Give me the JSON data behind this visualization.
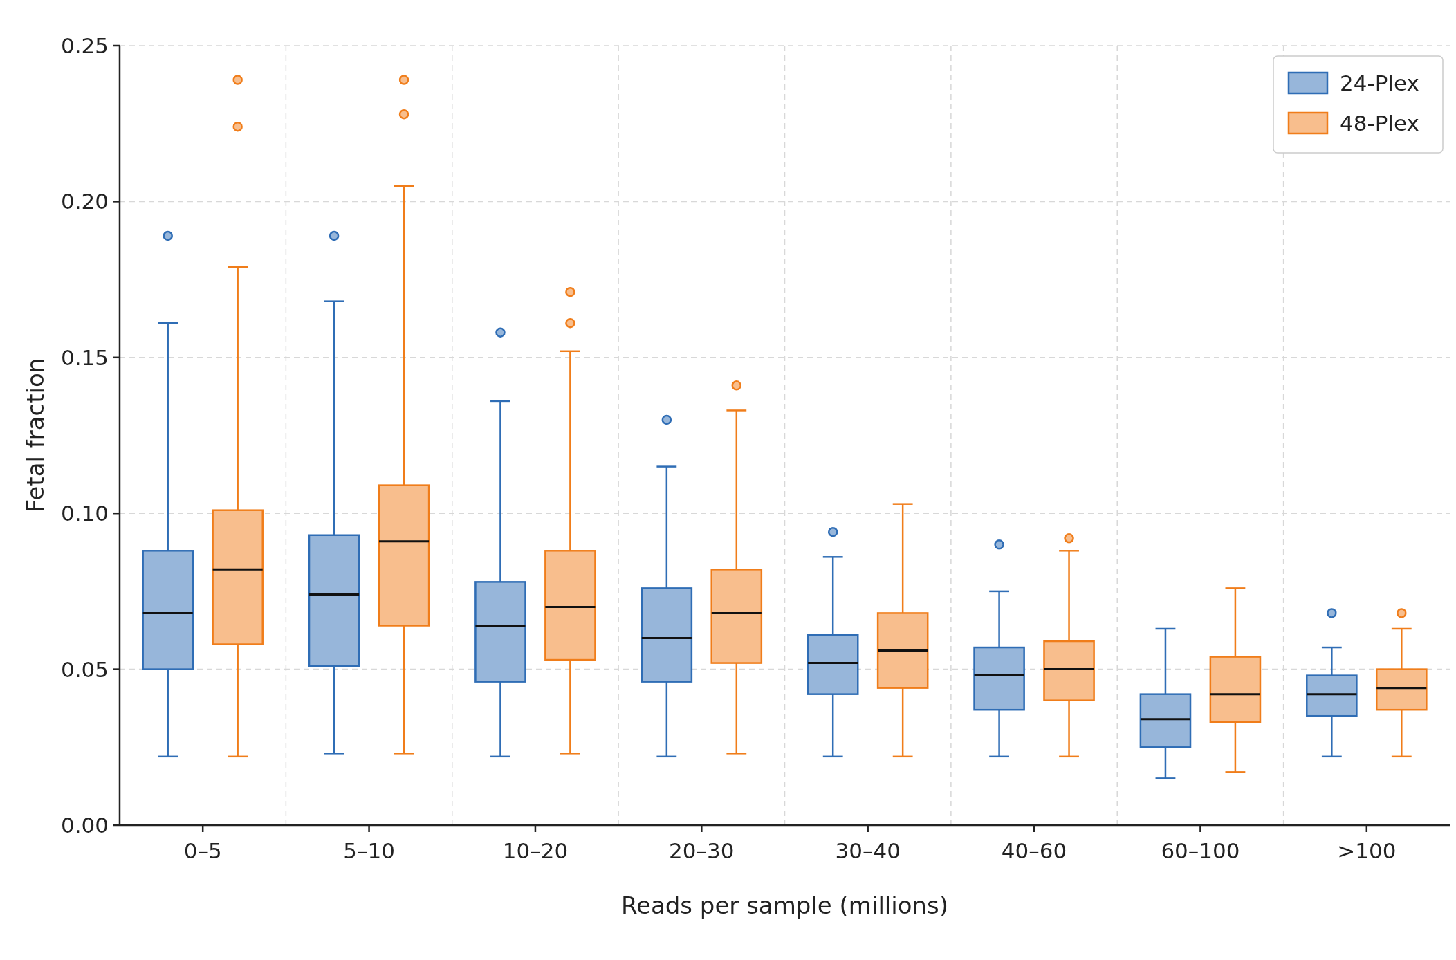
{
  "chart_data": {
    "type": "box",
    "xlabel": "Reads per sample (millions)",
    "ylabel": "Fetal fraction",
    "categories": [
      "0–5",
      "5–10",
      "10–20",
      "20–30",
      "30–40",
      "40–60",
      "60–100",
      ">100"
    ],
    "ylim": [
      0,
      0.25
    ],
    "yticks": [
      {
        "value": 0,
        "label": "0.00"
      },
      {
        "value": 0.05,
        "label": "0.05"
      },
      {
        "value": 0.1,
        "label": "0.10"
      },
      {
        "value": 0.15,
        "label": "0.15"
      },
      {
        "value": 0.2,
        "label": "0.20"
      },
      {
        "value": 0.25,
        "label": "0.25"
      }
    ],
    "grid": true,
    "legend": "top right",
    "series": [
      {
        "name": "24-Plex",
        "color": "#2f6db5",
        "boxes": [
          {
            "low": 0.022,
            "q1": 0.05,
            "median": 0.068,
            "q3": 0.088,
            "high": 0.161,
            "outliers": [
              0.189
            ]
          },
          {
            "low": 0.023,
            "q1": 0.051,
            "median": 0.074,
            "q3": 0.093,
            "high": 0.168,
            "outliers": [
              0.189
            ]
          },
          {
            "low": 0.022,
            "q1": 0.046,
            "median": 0.064,
            "q3": 0.078,
            "high": 0.136,
            "outliers": [
              0.158
            ]
          },
          {
            "low": 0.022,
            "q1": 0.046,
            "median": 0.06,
            "q3": 0.076,
            "high": 0.115,
            "outliers": [
              0.13
            ]
          },
          {
            "low": 0.022,
            "q1": 0.042,
            "median": 0.052,
            "q3": 0.061,
            "high": 0.086,
            "outliers": [
              0.094
            ]
          },
          {
            "low": 0.022,
            "q1": 0.037,
            "median": 0.048,
            "q3": 0.057,
            "high": 0.075,
            "outliers": [
              0.09
            ]
          },
          {
            "low": 0.015,
            "q1": 0.025,
            "median": 0.034,
            "q3": 0.042,
            "high": 0.063
          },
          {
            "low": 0.022,
            "q1": 0.035,
            "median": 0.042,
            "q3": 0.048,
            "high": 0.057,
            "outliers": [
              0.068
            ]
          }
        ]
      },
      {
        "name": "48-Plex",
        "color": "#f07d1a",
        "boxes": [
          {
            "low": 0.022,
            "q1": 0.058,
            "median": 0.082,
            "q3": 0.101,
            "high": 0.179,
            "outliers": [
              0.239,
              0.224
            ]
          },
          {
            "low": 0.023,
            "q1": 0.064,
            "median": 0.091,
            "q3": 0.109,
            "high": 0.205,
            "outliers": [
              0.239,
              0.228
            ]
          },
          {
            "low": 0.023,
            "q1": 0.053,
            "median": 0.07,
            "q3": 0.088,
            "high": 0.152,
            "outliers": [
              0.171,
              0.161
            ]
          },
          {
            "low": 0.023,
            "q1": 0.052,
            "median": 0.068,
            "q3": 0.082,
            "high": 0.133,
            "outliers": [
              0.141
            ]
          },
          {
            "low": 0.022,
            "q1": 0.044,
            "median": 0.056,
            "q3": 0.068,
            "high": 0.103
          },
          {
            "low": 0.022,
            "q1": 0.04,
            "median": 0.05,
            "q3": 0.059,
            "high": 0.088,
            "outliers": [
              0.092
            ]
          },
          {
            "low": 0.017,
            "q1": 0.033,
            "median": 0.042,
            "q3": 0.054,
            "high": 0.076
          },
          {
            "low": 0.022,
            "q1": 0.037,
            "median": 0.044,
            "q3": 0.05,
            "high": 0.063,
            "outliers": [
              0.068
            ]
          }
        ]
      }
    ]
  }
}
